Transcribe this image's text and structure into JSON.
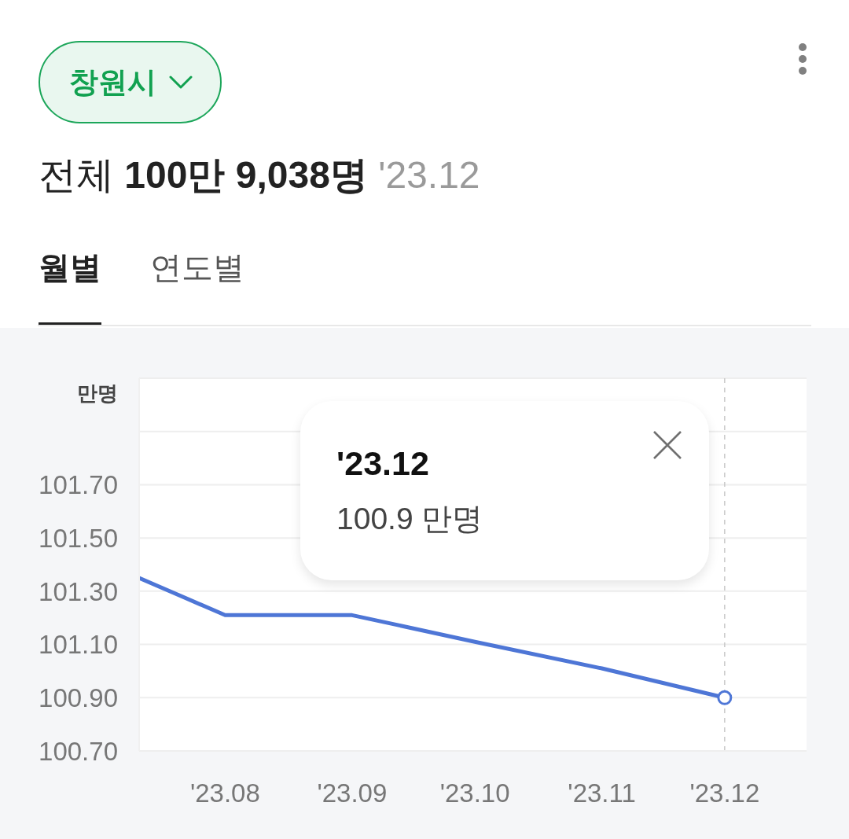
{
  "chart_data": {
    "type": "line",
    "title": "전체 100만 9,038명",
    "subtitle": "'23.12",
    "ylabel": "만명",
    "x": [
      "2023-07-11",
      "2023-08",
      "2023-09",
      "2023-10",
      "2023-11",
      "2023-12"
    ],
    "series": [
      {
        "color": "#4e76d6",
        "values": [
          101.35,
          101.21,
          101.21,
          101.11,
          101.01,
          100.9
        ]
      },
      {
        "type": "scatter",
        "marker": "circle",
        "color": "#4e76d6",
        "x": [
          "2023-12"
        ],
        "values": [
          100.9
        ]
      }
    ],
    "xlim": [
      "2023-07-11",
      "2023-12-21"
    ],
    "xticks": [
      {
        "value": "2023-08",
        "label": "'23.08"
      },
      {
        "value": "2023-09",
        "label": "'23.09"
      },
      {
        "value": "2023-10",
        "label": "'23.10"
      },
      {
        "value": "2023-11",
        "label": "'23.11"
      },
      {
        "value": "2023-12",
        "label": "'23.12"
      }
    ],
    "ylim": [
      100.7,
      102.1
    ],
    "yticks": [
      {
        "value": 100.7,
        "label": "100.70"
      },
      {
        "value": 100.9,
        "label": "100.90"
      },
      {
        "value": 101.1,
        "label": "101.10"
      },
      {
        "value": 101.3,
        "label": "101.30"
      },
      {
        "value": 101.5,
        "label": "101.50"
      },
      {
        "value": 101.7,
        "label": "101.70"
      },
      {
        "value": 101.9,
        "label": null
      }
    ],
    "grid": "y",
    "ref_lines": [
      {
        "axis": "x",
        "value": "2023-12",
        "color": "#c9c9c9",
        "line_style": "dashed"
      }
    ],
    "annotations": [
      "창원시",
      "월별",
      "연도별",
      "'23.12",
      "100.9 만명"
    ]
  }
}
